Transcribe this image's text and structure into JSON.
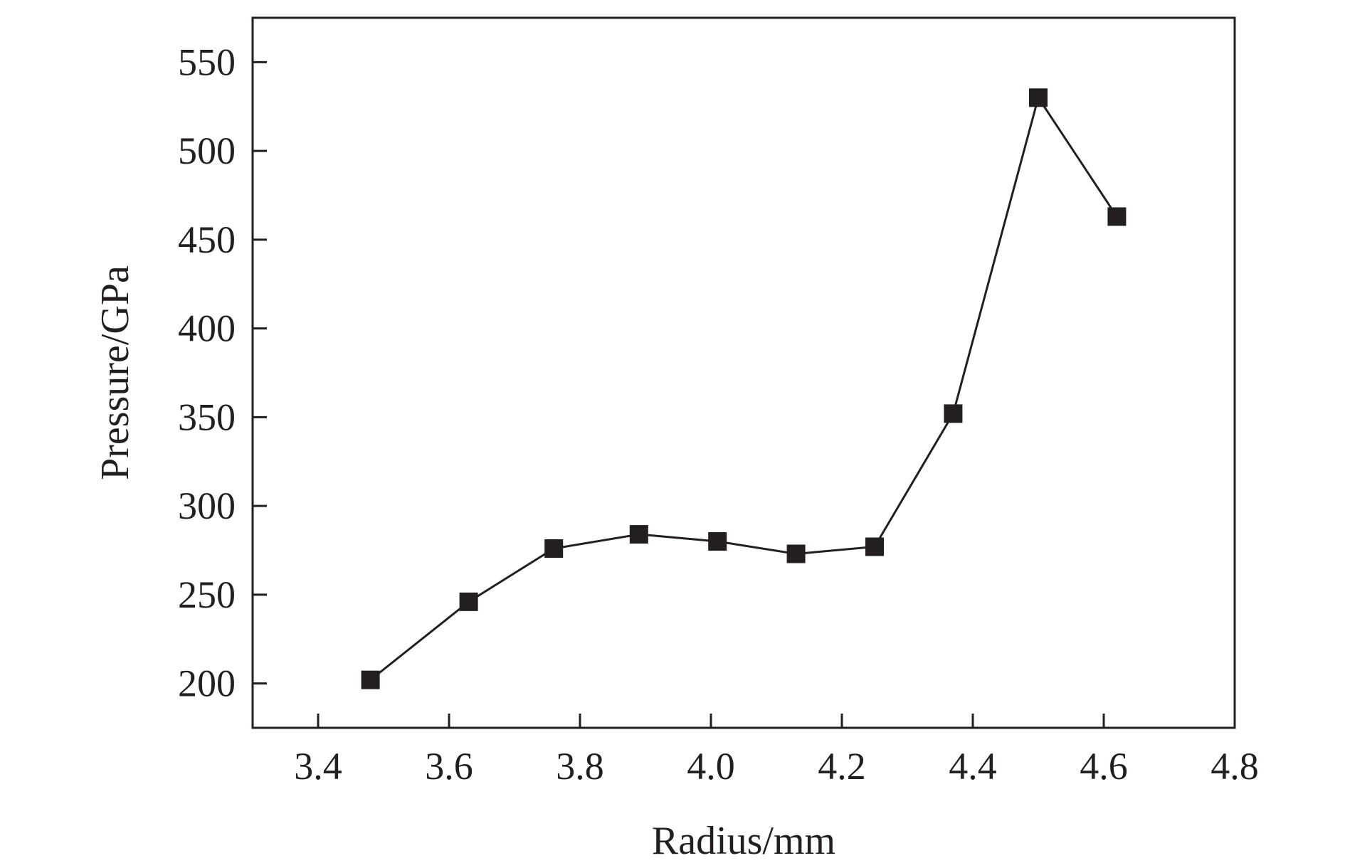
{
  "chart_data": {
    "type": "line",
    "title": "",
    "xlabel": "Radius/mm",
    "ylabel": "Pressure/GPa",
    "xlim": [
      3.3,
      4.8
    ],
    "ylim": [
      175,
      575
    ],
    "xticks": [
      3.4,
      3.6,
      3.8,
      4.0,
      4.2,
      4.4,
      4.6,
      4.8
    ],
    "xtick_labels": [
      "3.4",
      "3.6",
      "3.8",
      "4.0",
      "4.2",
      "4.4",
      "4.6",
      "4.8"
    ],
    "yticks": [
      200,
      250,
      300,
      350,
      400,
      450,
      500,
      550
    ],
    "ytick_labels": [
      "200",
      "250",
      "300",
      "350",
      "400",
      "450",
      "500",
      "550"
    ],
    "grid": false,
    "legend": "none",
    "series": [
      {
        "marker": "square",
        "color": "#231f20",
        "x": [
          3.48,
          3.63,
          3.76,
          3.89,
          4.01,
          4.13,
          4.25,
          4.37,
          4.5,
          4.62
        ],
        "y": [
          202,
          246,
          276,
          284,
          280,
          273,
          277,
          352,
          530,
          463
        ]
      }
    ]
  }
}
